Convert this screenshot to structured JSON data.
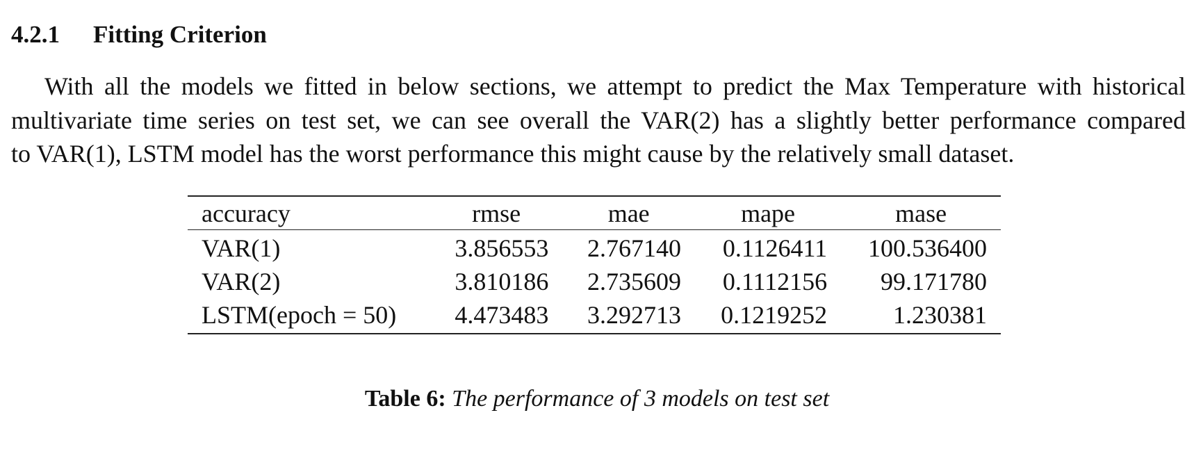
{
  "section": {
    "number": "4.2.1",
    "title": "Fitting Criterion"
  },
  "paragraph": {
    "lines": [
      "With all the models we fitted in below sections, we attempt to predict the Max Temperature with historical",
      "multivariate time series on test set, we can see overall the VAR(2) has a slightly better performance compared",
      "to VAR(1), LSTM model has the worst performance this might cause by the relatively small dataset."
    ]
  },
  "table": {
    "columns": [
      "accuracy",
      "rmse",
      "mae",
      "mape",
      "mase"
    ],
    "rows": [
      [
        "VAR(1)",
        "3.856553",
        "2.767140",
        "0.1126411",
        "100.536400"
      ],
      [
        "VAR(2)",
        "3.810186",
        "2.735609",
        "0.1112156",
        "99.171780"
      ],
      [
        "LSTM(epoch = 50)",
        "4.473483",
        "3.292713",
        "0.1219252",
        "1.230381"
      ]
    ]
  },
  "caption": {
    "label": "Table 6:",
    "text": "The performance of 3 models on test set"
  }
}
